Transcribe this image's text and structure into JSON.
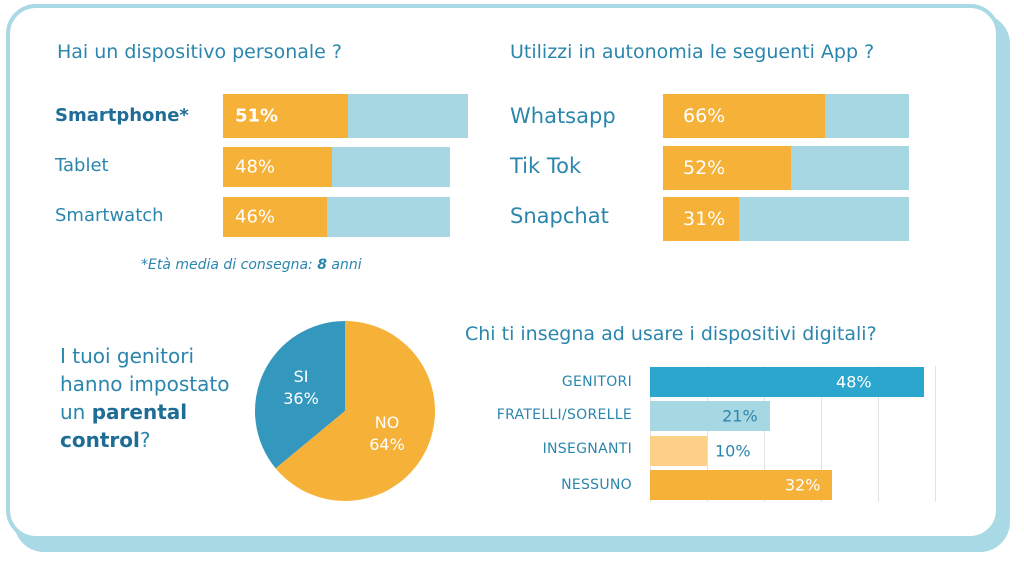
{
  "devices": {
    "title": "Hai un dispositivo personale ?",
    "note_prefix": "*Età media di consegna: ",
    "note_value": "8",
    "note_suffix": " anni"
  },
  "apps": {
    "title": "Utilizzi in autonomia le seguenti App  ?"
  },
  "parental": {
    "q_line1": "I tuoi genitori",
    "q_line2": "hanno impostato",
    "q_line3_pre": "un ",
    "q_line3_bold": "parental",
    "q_line4_bold": "control",
    "q_line4_post": "?"
  },
  "teach": {
    "title": "Chi ti insegna ad usare i dispositivi digitali?"
  },
  "colors": {
    "orange": "#f6b138",
    "light_blue": "#a6d7e3",
    "dark_blue": "#2ba6cf",
    "pie_blue": "#3497be",
    "light_orange": "#fdd088",
    "text_blue": "#2b86ad"
  },
  "chart_data": [
    {
      "type": "bar",
      "title": "Hai un dispositivo personale ?",
      "categories": [
        "Smartphone*",
        "Tablet",
        "Smartwatch"
      ],
      "values": [
        51,
        48,
        46
      ],
      "labels": [
        "51%",
        "48%",
        "46%"
      ],
      "unit": "%"
    },
    {
      "type": "bar",
      "title": "Utilizzi in autonomia le seguenti App  ?",
      "categories": [
        "Whatsapp",
        "Tik Tok",
        "Snapchat"
      ],
      "values": [
        66,
        52,
        31
      ],
      "labels": [
        "66%",
        "52%",
        "31%"
      ],
      "unit": "%"
    },
    {
      "type": "pie",
      "title": "I tuoi genitori hanno impostato un parental control?",
      "categories": [
        "SI",
        "NO"
      ],
      "values": [
        36,
        64
      ],
      "labels": [
        "36%",
        "64%"
      ]
    },
    {
      "type": "bar",
      "title": "Chi ti insegna ad usare i dispositivi digitali?",
      "categories": [
        "GENITORI",
        "FRATELLI/SORELLE",
        "INSEGNANTI",
        "NESSUNO"
      ],
      "values": [
        48,
        21,
        10,
        32
      ],
      "labels": [
        "48%",
        "21%",
        "10%",
        "32%"
      ],
      "unit": "%"
    }
  ]
}
